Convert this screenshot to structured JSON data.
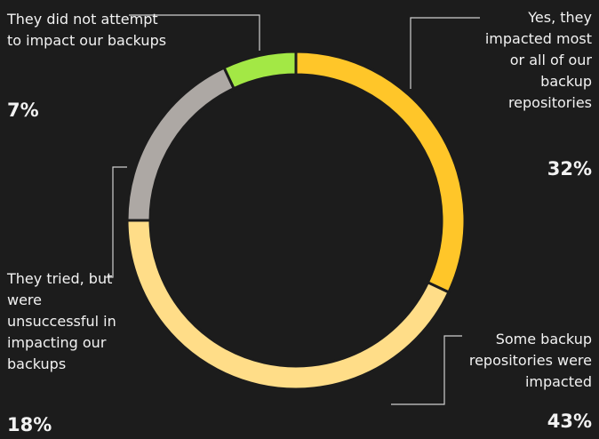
{
  "chart_data": {
    "type": "pie",
    "categories": [
      "Yes, they impacted most or all of our backup repositories",
      "Some backup repositories were impacted",
      "They tried, but were unsuccessful in impacting our backups",
      "They did not attempt to impact our backups"
    ],
    "values": [
      32,
      43,
      18,
      7
    ],
    "value_labels": [
      "32%",
      "43%",
      "18%",
      "7%"
    ],
    "colors": [
      "#ffc629",
      "#ffdd88",
      "#ada8a4",
      "#a3e845"
    ]
  }
}
